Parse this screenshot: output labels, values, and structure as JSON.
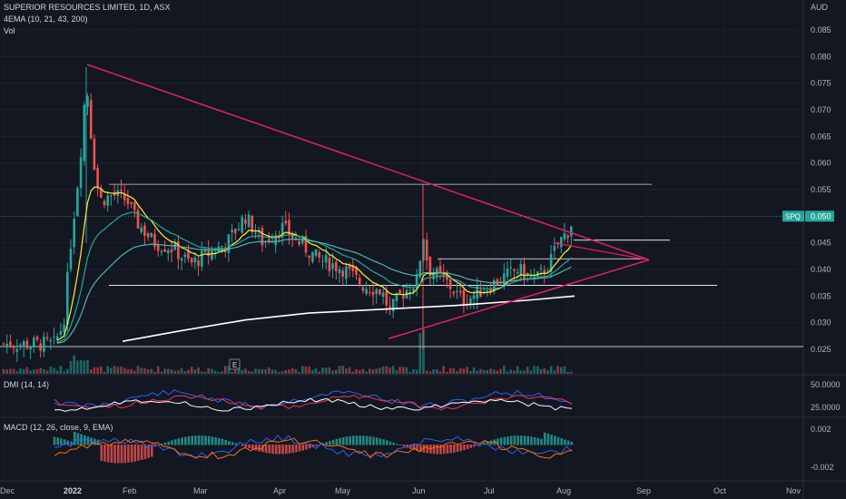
{
  "header": {
    "symbol_line": "SUPERIOR RESOURCES LIMITED, 1D, ASX",
    "indicator_line": "4EMA (10, 21, 43, 200)",
    "vol_label": "Vol",
    "currency": "AUD",
    "e_marker": "E"
  },
  "dmi": {
    "label": "DMI (14, 14)",
    "ticks": [
      "50.0000",
      "25.0000"
    ]
  },
  "macd": {
    "label": "MACD (12, 26, close, 9, EMA)",
    "ticks": [
      "0.002",
      "-0.002"
    ]
  },
  "price_badge": {
    "symbol": "SPQ",
    "price": "0.050",
    "color": "#26a69a"
  },
  "colors": {
    "up": "#26a69a",
    "down": "#ef5350",
    "trendline": "#e91e63",
    "ema10": "#ffeb3b",
    "ema21": "#26a69a",
    "ema43": "#4db6ac",
    "ema200": "#ffffff",
    "hline": "#ffffff",
    "dmi_plus": "#2962ff",
    "dmi_minus": "#f23645",
    "adx": "#ffffff",
    "macd_line": "#2962ff",
    "signal_line": "#ff6d00"
  },
  "chart_data": {
    "type": "candlestick",
    "y_axis_ticks": [
      "0.085",
      "0.080",
      "0.075",
      "0.070",
      "0.065",
      "0.060",
      "0.055",
      "0.050",
      "0.045",
      "0.040",
      "0.035",
      "0.030",
      "0.025"
    ],
    "x_axis_ticks": [
      "Dec",
      "2022",
      "Feb",
      "Mar",
      "Apr",
      "May",
      "Jun",
      "Jul",
      "Aug",
      "Sep",
      "Oct",
      "Nov"
    ],
    "last_price": 0.05,
    "price_range": [
      0.0265,
      0.078
    ],
    "drawn_levels": [
      0.056,
      0.042,
      0.037,
      0.0255
    ],
    "series": [
      {
        "name": "4EMA (10, 21, 43, 200)"
      }
    ]
  }
}
